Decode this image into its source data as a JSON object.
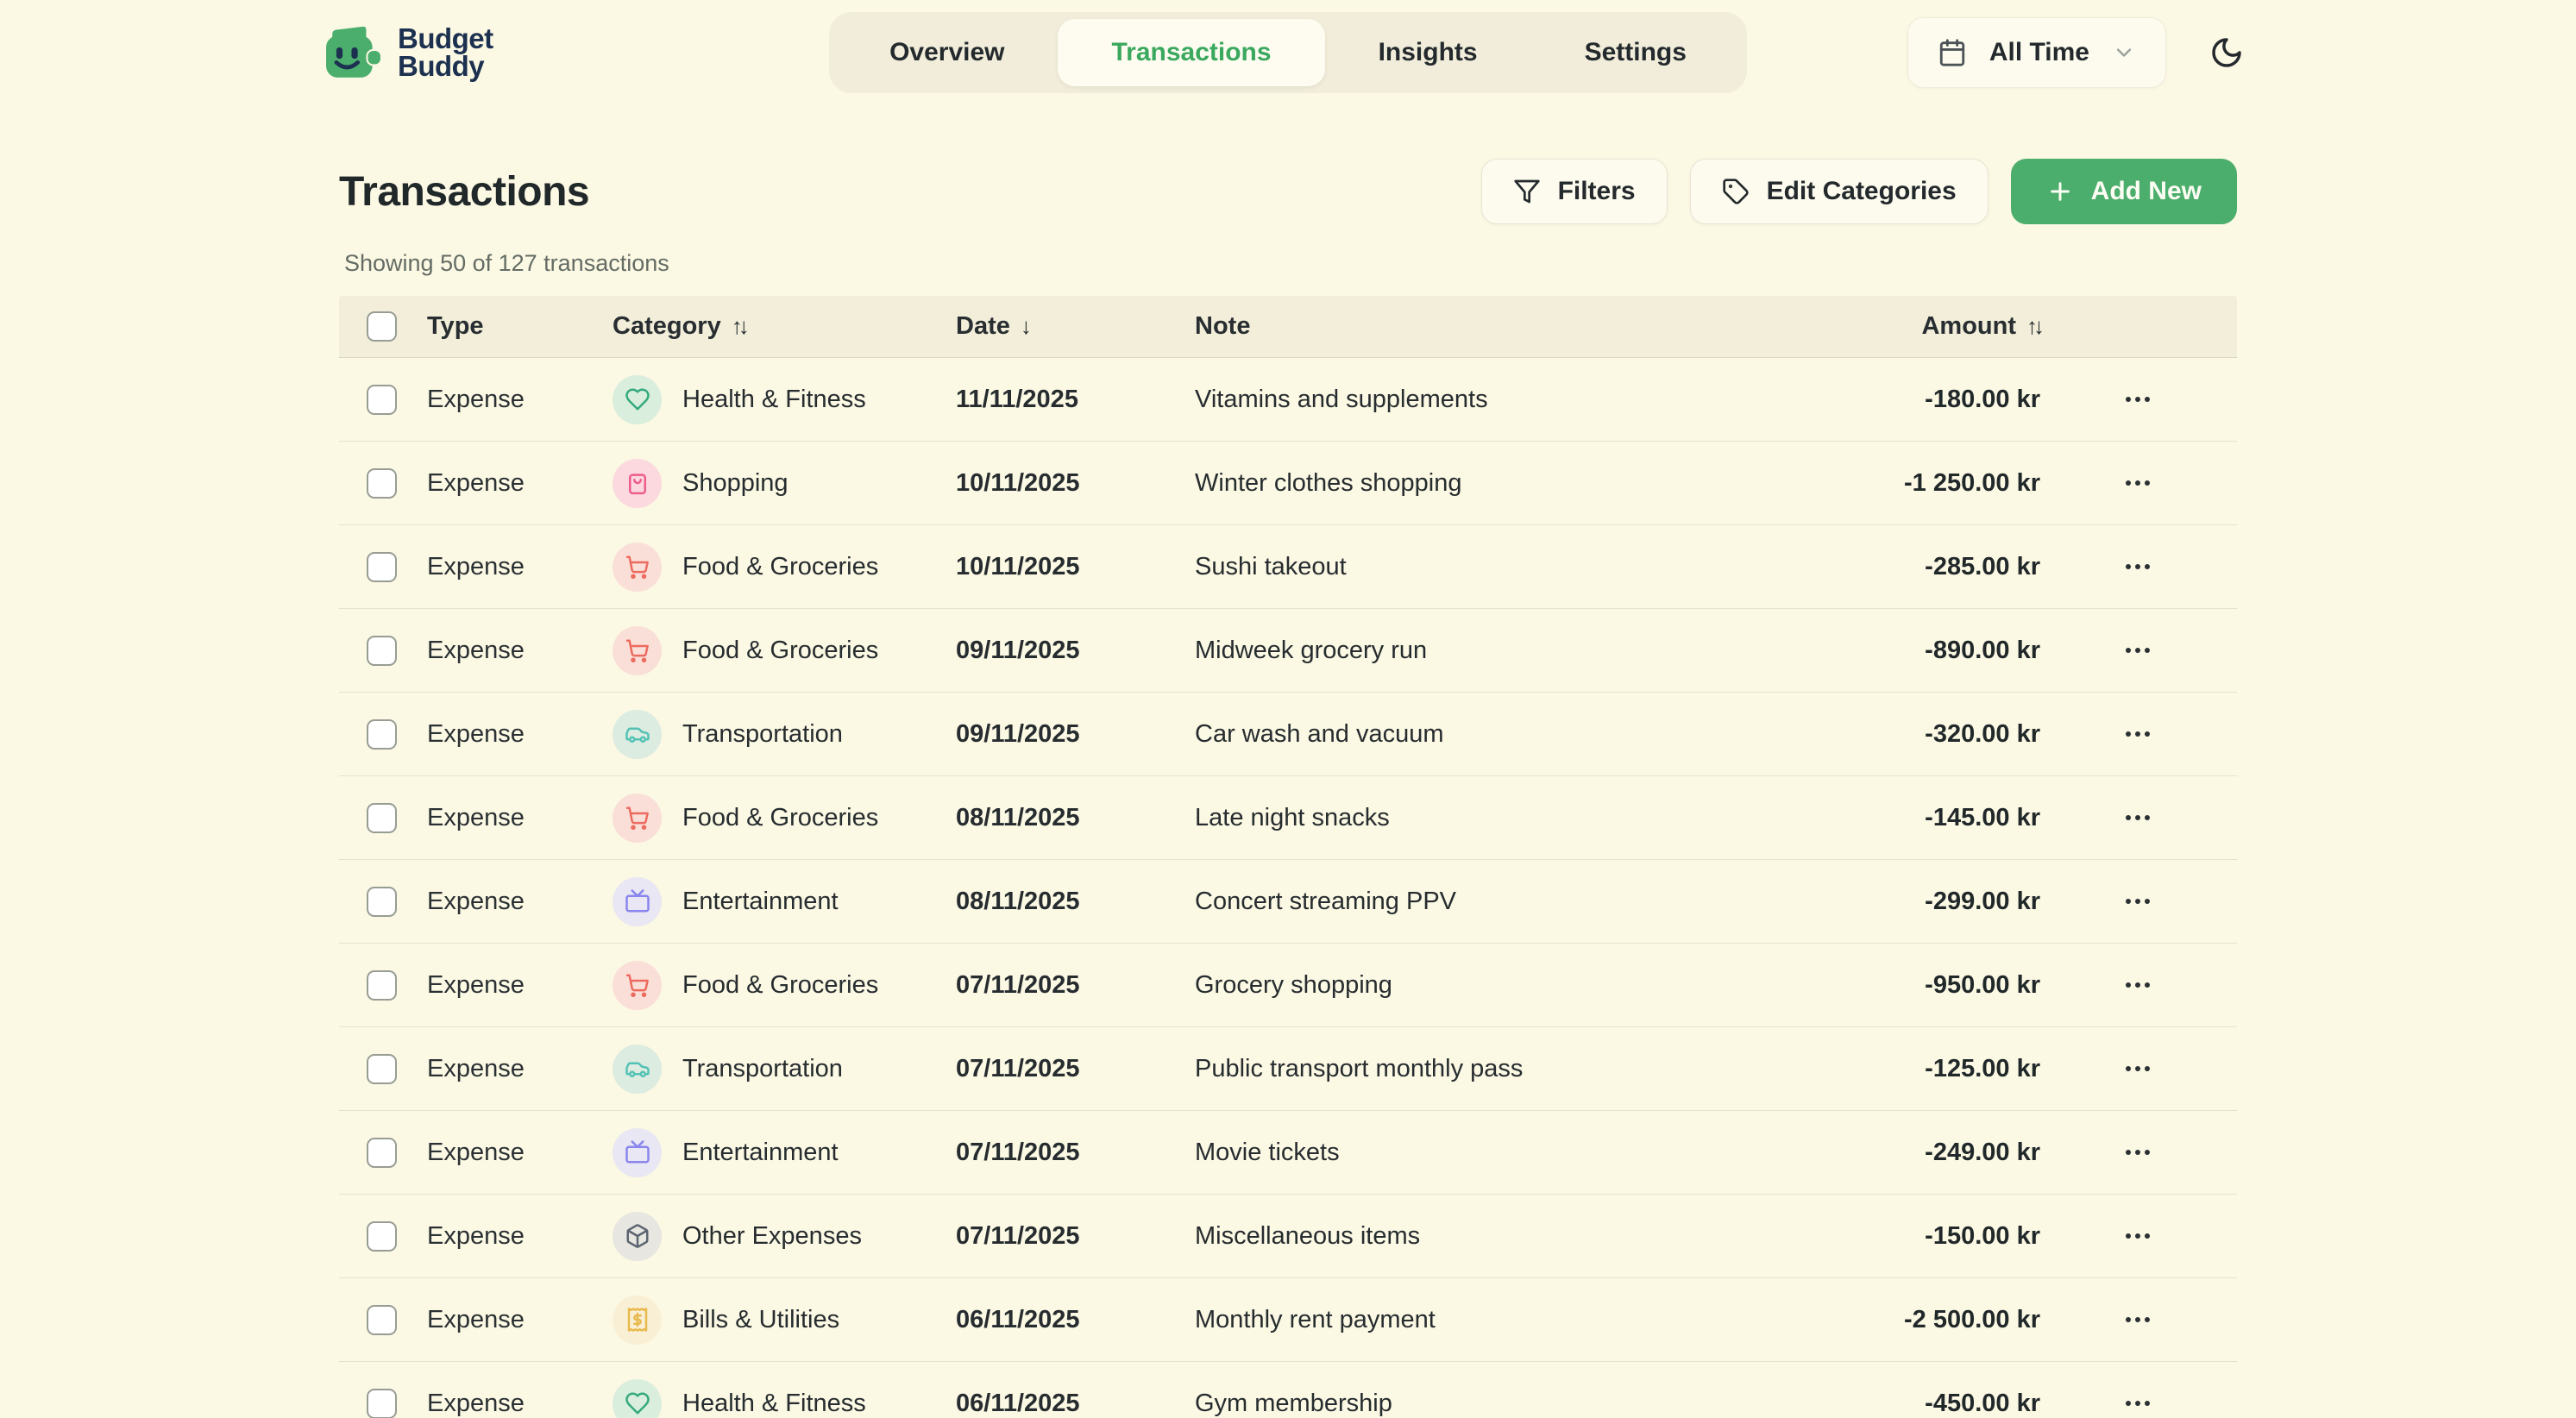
{
  "brand": {
    "line1": "Budget",
    "line2": "Buddy"
  },
  "nav": {
    "tabs": [
      {
        "label": "Overview",
        "active": false
      },
      {
        "label": "Transactions",
        "active": true
      },
      {
        "label": "Insights",
        "active": false
      },
      {
        "label": "Settings",
        "active": false
      }
    ]
  },
  "header_controls": {
    "time_filter_value": "All Time",
    "icons": [
      "calendar-icon",
      "chevron-down-icon",
      "moon-icon"
    ]
  },
  "page": {
    "title": "Transactions",
    "summary": "Showing 50 of 127 transactions"
  },
  "toolbar": {
    "filters_label": "Filters",
    "edit_categories_label": "Edit Categories",
    "add_new_label": "Add New",
    "add_new_plus": "+"
  },
  "colors": {
    "page_bg": "#fbf8e3",
    "accent_green": "#4cae6d",
    "active_tab_text": "#3aa85e",
    "logo_navy": "#1c3050",
    "table_header_bg": "#f2eeda"
  },
  "table": {
    "columns": {
      "type": "Type",
      "category": "Category",
      "date": "Date",
      "note": "Note",
      "amount": "Amount"
    },
    "sort_glyphs": {
      "category": "↑↓",
      "date": "↓",
      "amount": "↑↓"
    },
    "rows": [
      {
        "type": "Expense",
        "category": "Health & Fitness",
        "date": "11/11/2025",
        "note": "Vitamins and supplements",
        "amount": "-180.00 kr"
      },
      {
        "type": "Expense",
        "category": "Shopping",
        "date": "10/11/2025",
        "note": "Winter clothes shopping",
        "amount": "-1 250.00 kr"
      },
      {
        "type": "Expense",
        "category": "Food & Groceries",
        "date": "10/11/2025",
        "note": "Sushi takeout",
        "amount": "-285.00 kr"
      },
      {
        "type": "Expense",
        "category": "Food & Groceries",
        "date": "09/11/2025",
        "note": "Midweek grocery run",
        "amount": "-890.00 kr"
      },
      {
        "type": "Expense",
        "category": "Transportation",
        "date": "09/11/2025",
        "note": "Car wash and vacuum",
        "amount": "-320.00 kr"
      },
      {
        "type": "Expense",
        "category": "Food & Groceries",
        "date": "08/11/2025",
        "note": "Late night snacks",
        "amount": "-145.00 kr"
      },
      {
        "type": "Expense",
        "category": "Entertainment",
        "date": "08/11/2025",
        "note": "Concert streaming PPV",
        "amount": "-299.00 kr"
      },
      {
        "type": "Expense",
        "category": "Food & Groceries",
        "date": "07/11/2025",
        "note": "Grocery shopping",
        "amount": "-950.00 kr"
      },
      {
        "type": "Expense",
        "category": "Transportation",
        "date": "07/11/2025",
        "note": "Public transport monthly pass",
        "amount": "-125.00 kr"
      },
      {
        "type": "Expense",
        "category": "Entertainment",
        "date": "07/11/2025",
        "note": "Movie tickets",
        "amount": "-249.00 kr"
      },
      {
        "type": "Expense",
        "category": "Other Expenses",
        "date": "07/11/2025",
        "note": "Miscellaneous items",
        "amount": "-150.00 kr"
      },
      {
        "type": "Expense",
        "category": "Bills & Utilities",
        "date": "06/11/2025",
        "note": "Monthly rent payment",
        "amount": "-2 500.00 kr"
      },
      {
        "type": "Expense",
        "category": "Health & Fitness",
        "date": "06/11/2025",
        "note": "Gym membership",
        "amount": "-450.00 kr"
      }
    ]
  },
  "category_styles": {
    "Health & Fitness": {
      "bg": "#d9eedd",
      "fg": "#33a97c",
      "icon": "heart-icon"
    },
    "Shopping": {
      "bg": "#fbd9de",
      "fg": "#ee5c8e",
      "icon": "shopping-bag-icon"
    },
    "Food & Groceries": {
      "bg": "#fadfd8",
      "fg": "#ed6a5e",
      "icon": "cart-icon"
    },
    "Transportation": {
      "bg": "#dcece1",
      "fg": "#54c2b5",
      "icon": "car-icon"
    },
    "Entertainment": {
      "bg": "#e8e7f3",
      "fg": "#8a86ee",
      "icon": "tv-icon"
    },
    "Other Expenses": {
      "bg": "#e7e6e0",
      "fg": "#5b6470",
      "icon": "package-icon"
    },
    "Bills & Utilities": {
      "bg": "#f9efd5",
      "fg": "#e8b94c",
      "icon": "receipt-icon"
    }
  }
}
